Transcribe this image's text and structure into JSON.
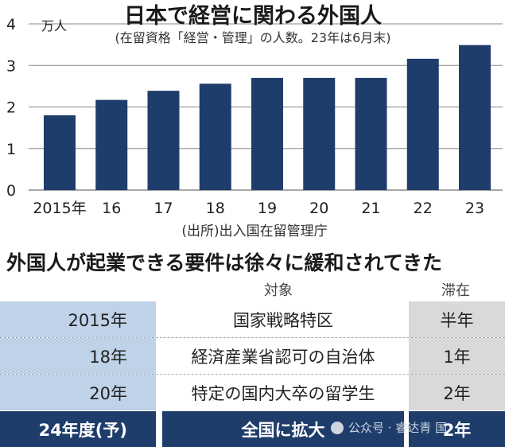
{
  "chart_data": {
    "type": "bar",
    "title": "日本で経営に関わる外国人",
    "subtitle": "(在留資格「経営・管理」の人数。23年は6月末)",
    "ylabel": "万人",
    "source": "(出所)出入国在留管理庁",
    "categories": [
      "2015年",
      "16",
      "17",
      "18",
      "19",
      "20",
      "21",
      "22",
      "23"
    ],
    "values": [
      1.8,
      2.17,
      2.39,
      2.56,
      2.7,
      2.7,
      2.7,
      3.16,
      3.49
    ],
    "yticks": [
      "0",
      "1",
      "2",
      "3",
      "4"
    ],
    "ylim": [
      0,
      4
    ],
    "grid": true,
    "bar_color": "#1f3d6b"
  },
  "requirements": {
    "title": "外国人が起業できる要件は徐々に緩和されてきた",
    "header_target": "対象",
    "header_stay": "滞在",
    "rows": [
      {
        "year": "2015年",
        "target": "国家戦略特区",
        "stay": "半年"
      },
      {
        "year": "18年",
        "target": "経済産業省認可の自治体",
        "stay": "1年"
      },
      {
        "year": "20年",
        "target": "特定の国内大卒の留学生",
        "stay": "2年"
      },
      {
        "year": "24年度(予)",
        "target": "全国に拡大",
        "stay": "2年"
      }
    ]
  },
  "watermark": {
    "text": "公众号 · 睿达青 国"
  }
}
